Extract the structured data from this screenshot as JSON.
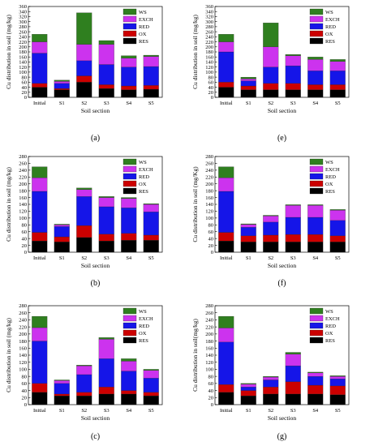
{
  "chart_data": [
    {
      "type": "bar",
      "stacked": true,
      "panel": "(a)",
      "categories": [
        "Initial",
        "S1",
        "S2",
        "S3",
        "S4",
        "S5"
      ],
      "xlabel": "Soil section",
      "ylabel": "Cu distribution in soil (mg/kg)",
      "ylim": [
        0,
        360
      ],
      "yticks": [
        0,
        20,
        40,
        60,
        80,
        100,
        120,
        140,
        160,
        180,
        200,
        220,
        240,
        260,
        280,
        300,
        320,
        340,
        360
      ],
      "legend_placement": "top-right",
      "series": [
        {
          "name": "RES",
          "color": "#000000",
          "values": [
            40,
            30,
            60,
            35,
            30,
            32
          ]
        },
        {
          "name": "OX",
          "color": "#cc0000",
          "values": [
            15,
            5,
            25,
            15,
            15,
            15
          ]
        },
        {
          "name": "RED",
          "color": "#1515e8",
          "values": [
            120,
            20,
            60,
            80,
            75,
            75
          ]
        },
        {
          "name": "EXCH",
          "color": "#cc33ee",
          "values": [
            45,
            8,
            65,
            80,
            35,
            40
          ]
        },
        {
          "name": "WS",
          "color": "#2f7f1f",
          "values": [
            30,
            5,
            125,
            15,
            10,
            5
          ]
        }
      ]
    },
    {
      "type": "bar",
      "stacked": true,
      "panel": "(b)",
      "categories": [
        "Initial",
        "S1",
        "S2",
        "S3",
        "S4",
        "S5"
      ],
      "xlabel": "Soil section",
      "ylabel": "Cu distribution in soil (mg/kg)",
      "ylim": [
        0,
        280
      ],
      "yticks": [
        0,
        20,
        40,
        60,
        80,
        100,
        120,
        140,
        160,
        180,
        200,
        220,
        240,
        260,
        280
      ],
      "legend_placement": "top-right",
      "series": [
        {
          "name": "RES",
          "color": "#000000",
          "values": [
            33,
            30,
            43,
            33,
            35,
            35
          ]
        },
        {
          "name": "OX",
          "color": "#cc0000",
          "values": [
            25,
            15,
            35,
            20,
            20,
            15
          ]
        },
        {
          "name": "RED",
          "color": "#1515e8",
          "values": [
            120,
            30,
            85,
            80,
            75,
            68
          ]
        },
        {
          "name": "EXCH",
          "color": "#cc33ee",
          "values": [
            40,
            5,
            20,
            27,
            27,
            22
          ]
        },
        {
          "name": "WS",
          "color": "#2f7f1f",
          "values": [
            32,
            2,
            5,
            3,
            3,
            2
          ]
        }
      ]
    },
    {
      "type": "bar",
      "stacked": true,
      "panel": "(c)",
      "categories": [
        "Initial",
        "S1",
        "S2",
        "S3",
        "S4",
        "S5"
      ],
      "xlabel": "Soil section",
      "ylabel": "Cu distribution in soil (mg/kg)",
      "ylim": [
        0,
        280
      ],
      "yticks": [
        0,
        20,
        40,
        60,
        80,
        100,
        120,
        140,
        160,
        180,
        200,
        220,
        240,
        260,
        280
      ],
      "legend_placement": "top-right",
      "series": [
        {
          "name": "RES",
          "color": "#000000",
          "values": [
            35,
            25,
            25,
            30,
            30,
            25
          ]
        },
        {
          "name": "OX",
          "color": "#cc0000",
          "values": [
            25,
            5,
            10,
            20,
            10,
            10
          ]
        },
        {
          "name": "RED",
          "color": "#1515e8",
          "values": [
            120,
            30,
            50,
            80,
            55,
            40
          ]
        },
        {
          "name": "EXCH",
          "color": "#cc33ee",
          "values": [
            38,
            8,
            25,
            55,
            28,
            22
          ]
        },
        {
          "name": "WS",
          "color": "#2f7f1f",
          "values": [
            32,
            2,
            2,
            5,
            7,
            3
          ]
        }
      ]
    },
    {
      "type": "bar",
      "stacked": true,
      "panel": "(e)",
      "categories": [
        "Initial",
        "S1",
        "S2",
        "S3",
        "S4",
        "S5"
      ],
      "xlabel": "Soil section",
      "ylabel": "Cu distribution in soil (mg/kg)",
      "ylim": [
        0,
        360
      ],
      "yticks": [
        0,
        20,
        40,
        60,
        80,
        100,
        120,
        140,
        160,
        180,
        200,
        220,
        240,
        260,
        280,
        300,
        320,
        340,
        360
      ],
      "legend_placement": "top-right",
      "series": [
        {
          "name": "RES",
          "color": "#000000",
          "values": [
            40,
            30,
            30,
            30,
            30,
            30
          ]
        },
        {
          "name": "OX",
          "color": "#cc0000",
          "values": [
            20,
            15,
            25,
            25,
            20,
            20
          ]
        },
        {
          "name": "RED",
          "color": "#1515e8",
          "values": [
            120,
            20,
            65,
            70,
            55,
            55
          ]
        },
        {
          "name": "EXCH",
          "color": "#cc33ee",
          "values": [
            40,
            8,
            80,
            40,
            45,
            37
          ]
        },
        {
          "name": "WS",
          "color": "#2f7f1f",
          "values": [
            30,
            7,
            95,
            5,
            10,
            8
          ]
        }
      ]
    },
    {
      "type": "bar",
      "stacked": true,
      "panel": "(f)",
      "categories": [
        "Initial",
        "S1",
        "S2",
        "S3",
        "S4",
        "S5"
      ],
      "xlabel": "Soil section",
      "ylabel": "Cu distribution in soil (mg/Kg)",
      "ylim": [
        0,
        280
      ],
      "yticks": [
        0,
        20,
        40,
        60,
        80,
        100,
        120,
        140,
        160,
        180,
        200,
        220,
        240,
        260,
        280
      ],
      "legend_placement": "top-right",
      "series": [
        {
          "name": "RES",
          "color": "#000000",
          "values": [
            33,
            30,
            30,
            30,
            30,
            30
          ]
        },
        {
          "name": "OX",
          "color": "#cc0000",
          "values": [
            25,
            18,
            20,
            22,
            22,
            18
          ]
        },
        {
          "name": "RED",
          "color": "#1515e8",
          "values": [
            120,
            25,
            38,
            50,
            50,
            45
          ]
        },
        {
          "name": "EXCH",
          "color": "#cc33ee",
          "values": [
            40,
            8,
            18,
            35,
            35,
            30
          ]
        },
        {
          "name": "WS",
          "color": "#2f7f1f",
          "values": [
            32,
            2,
            2,
            2,
            2,
            2
          ]
        }
      ]
    },
    {
      "type": "bar",
      "stacked": true,
      "panel": "(g)",
      "categories": [
        "Initial",
        "S1",
        "S2",
        "S3",
        "S4",
        "S5"
      ],
      "xlabel": "Soil section",
      "ylabel": "Cu distribution in soil(mg/kg)",
      "ylim": [
        0,
        280
      ],
      "yticks": [
        0,
        20,
        40,
        60,
        80,
        100,
        120,
        140,
        160,
        180,
        200,
        220,
        240,
        260,
        280
      ],
      "legend_placement": "top-right",
      "series": [
        {
          "name": "RES",
          "color": "#000000",
          "values": [
            35,
            25,
            30,
            30,
            30,
            28
          ]
        },
        {
          "name": "OX",
          "color": "#cc0000",
          "values": [
            22,
            15,
            20,
            35,
            25,
            25
          ]
        },
        {
          "name": "RED",
          "color": "#1515e8",
          "values": [
            120,
            10,
            20,
            45,
            25,
            20
          ]
        },
        {
          "name": "EXCH",
          "color": "#cc33ee",
          "values": [
            40,
            8,
            8,
            33,
            10,
            7
          ]
        },
        {
          "name": "WS",
          "color": "#2f7f1f",
          "values": [
            33,
            2,
            2,
            5,
            2,
            2
          ]
        }
      ]
    }
  ]
}
